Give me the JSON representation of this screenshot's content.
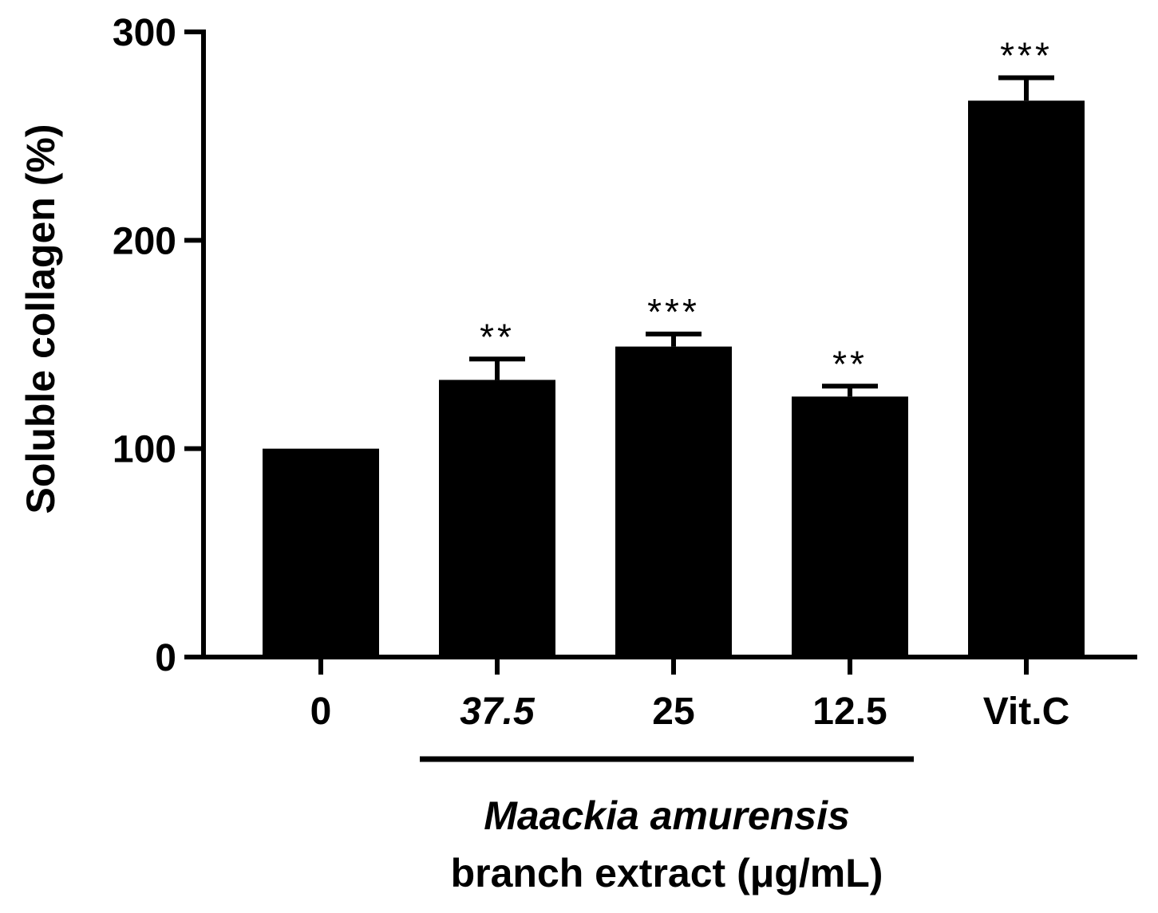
{
  "chart_data": {
    "type": "bar",
    "categories": [
      "0",
      "37.5",
      "25",
      "12.5",
      "Vit.C"
    ],
    "category_italic": [
      false,
      true,
      false,
      false,
      false
    ],
    "values": [
      100,
      133,
      149,
      125,
      267
    ],
    "errors": [
      0,
      10,
      6,
      5,
      11
    ],
    "significance": [
      "",
      "**",
      "***",
      "**",
      "***"
    ],
    "ylabel": "Soluble collagen (%)",
    "ylim": [
      0,
      300
    ],
    "yticks": [
      0,
      100,
      200,
      300
    ],
    "grid": false,
    "bar_color": "#000000",
    "group_bracket": {
      "from_category": "37.5",
      "to_category": "12.5",
      "label_line1": "Maackia amurensis",
      "label_line2": "branch extract (μg/mL)"
    }
  }
}
